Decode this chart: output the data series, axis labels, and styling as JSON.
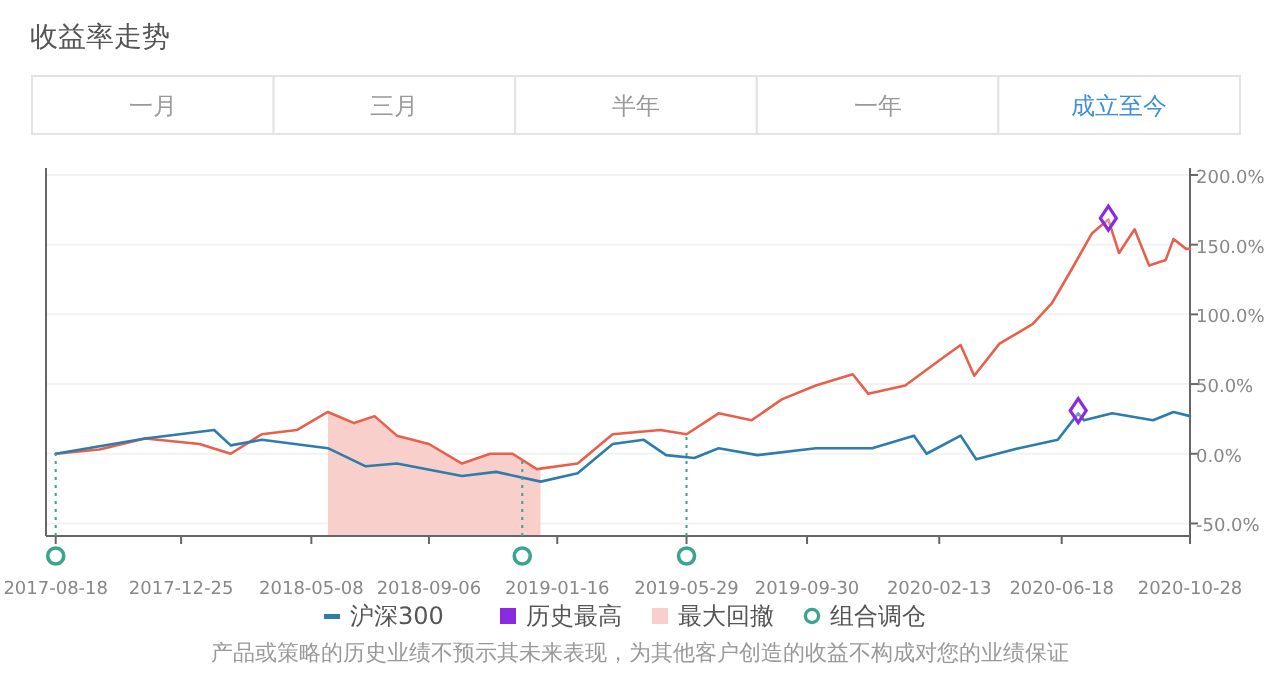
{
  "chart_data": {
    "type": "line",
    "title": "收益率走势",
    "annotations": [
      "一月",
      "三月",
      "半年",
      "一年",
      "成立至今",
      "产品或策略的历史业绩不预示其未来表现，为其他客户创造的收益不构成对您的业绩保证"
    ],
    "xlim": [
      "2017-08-08",
      "2020-10-28"
    ],
    "xticks": [
      "2017-08-18",
      "2017-12-25",
      "2018-05-08",
      "2018-09-06",
      "2019-01-16",
      "2019-05-29",
      "2019-09-30",
      "2020-02-13",
      "2020-06-18",
      "2020-10-28"
    ],
    "ylim": [
      -59,
      205
    ],
    "yticks": [
      {
        "value": -50,
        "label": "-50.0%"
      },
      {
        "value": 0,
        "label": "0.0%"
      },
      {
        "value": 50,
        "label": "50.0%"
      },
      {
        "value": 100,
        "label": "100.0%"
      },
      {
        "value": 150,
        "label": "150.0%"
      },
      {
        "value": 200,
        "label": "200.0%"
      }
    ],
    "grid": "y",
    "legend": "bottom",
    "series": [
      {
        "color": "#e8604c",
        "x": [
          "2017-08-18",
          "2017-10-02",
          "2017-11-18",
          "2018-01-13",
          "2018-02-14",
          "2018-03-18",
          "2018-04-23",
          "2018-05-25",
          "2018-06-21",
          "2018-07-12",
          "2018-08-04",
          "2018-09-06",
          "2018-10-10",
          "2018-11-08",
          "2018-12-01",
          "2018-12-26",
          "2019-02-06",
          "2019-03-14",
          "2019-05-02",
          "2019-05-29",
          "2019-07-01",
          "2019-08-04",
          "2019-09-04",
          "2019-10-09",
          "2019-11-16",
          "2019-12-02",
          "2020-01-09",
          "2020-02-15",
          "2020-03-06",
          "2020-03-20",
          "2020-04-15",
          "2020-05-19",
          "2020-06-08",
          "2020-06-28",
          "2020-07-19",
          "2020-08-05",
          "2020-08-16",
          "2020-09-01",
          "2020-09-16",
          "2020-10-03",
          "2020-10-11",
          "2020-10-24",
          "2020-10-28"
        ],
        "values": [
          0,
          3,
          11,
          7,
          0,
          14,
          17,
          30,
          22,
          27,
          13,
          7,
          -7,
          0,
          0,
          -11,
          -7,
          14,
          17,
          14,
          29,
          24,
          39,
          49,
          57,
          43,
          49,
          68,
          78,
          56,
          79,
          93,
          108,
          132,
          158,
          168,
          144,
          161,
          135,
          139,
          154,
          147,
          147
        ]
      },
      {
        "name": "沪深300",
        "color": "#2e7cab",
        "x": [
          "2017-08-18",
          "2017-11-18",
          "2018-01-28",
          "2018-02-14",
          "2018-03-18",
          "2018-05-25",
          "2018-07-03",
          "2018-08-04",
          "2018-10-10",
          "2018-11-14",
          "2018-12-30",
          "2019-02-06",
          "2019-03-14",
          "2019-04-15",
          "2019-05-08",
          "2019-06-06",
          "2019-07-01",
          "2019-08-10",
          "2019-10-09",
          "2019-12-06",
          "2020-01-18",
          "2020-01-31",
          "2020-03-06",
          "2020-03-22",
          "2020-05-05",
          "2020-06-14",
          "2020-07-05",
          "2020-07-11",
          "2020-08-09",
          "2020-09-20",
          "2020-10-11",
          "2020-10-28"
        ],
        "values": [
          0,
          11,
          17,
          6,
          10,
          4,
          -9,
          -7,
          -16,
          -13,
          -20,
          -14,
          7,
          10,
          -1,
          -3,
          4,
          -1,
          4,
          4,
          13,
          0,
          13,
          -4,
          4,
          10,
          29,
          24,
          29,
          24,
          30,
          27
        ]
      },
      {
        "name": "历史最高",
        "type": "scatter",
        "marker": "diamond",
        "color": "#8a2be2",
        "x": [
          "2020-07-05",
          "2020-08-05"
        ],
        "values": [
          31,
          169
        ]
      }
    ],
    "bands": [
      {
        "axis": "x",
        "from": "2018-05-25",
        "to": "2018-12-30",
        "label": "最大回撤",
        "color": "#f9cfcb"
      }
    ],
    "ref_lines": [
      {
        "axis": "x",
        "value": "2017-08-18",
        "label": "组合调仓",
        "color": "#3aa48e",
        "line_style": "dotted"
      },
      {
        "axis": "x",
        "value": "2018-12-11",
        "color": "#3aa48e",
        "line_style": "dotted"
      },
      {
        "axis": "x",
        "value": "2019-05-29",
        "color": "#3aa48e",
        "line_style": "dotted"
      }
    ]
  }
}
